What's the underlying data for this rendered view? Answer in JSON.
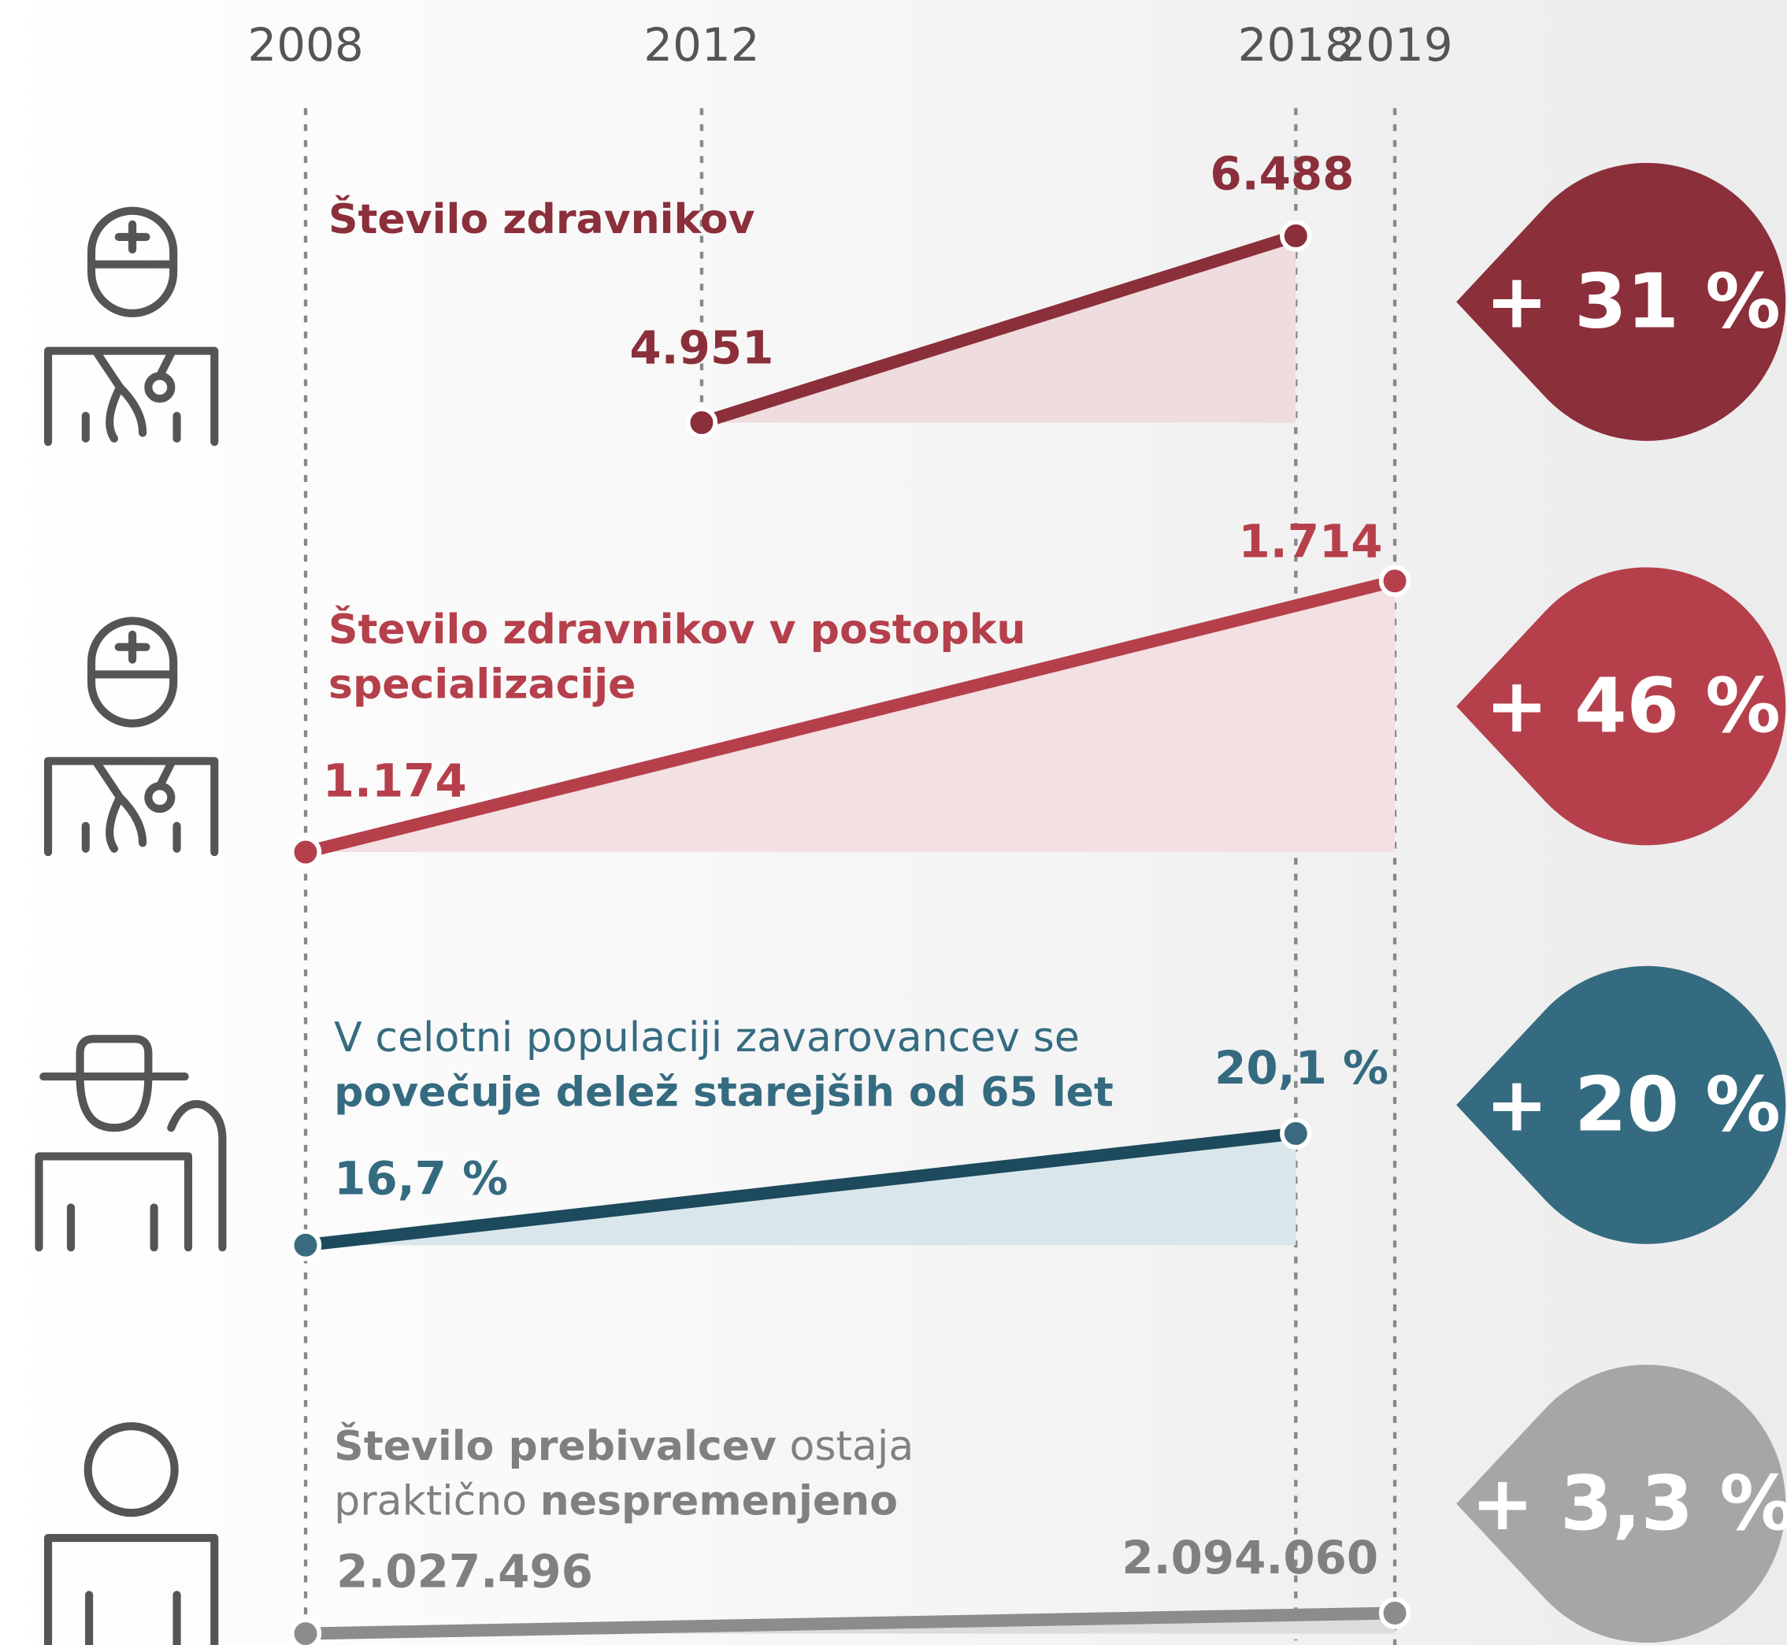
{
  "axis": {
    "xlim": [
      2008,
      2019
    ],
    "xticks": [
      2008,
      2012,
      2018,
      2019
    ]
  },
  "chart_data": [
    {
      "type": "line",
      "title_lines": [
        [
          {
            "text": "Število zdravnikov",
            "bold": true
          }
        ]
      ],
      "x": [
        2012,
        2018
      ],
      "values": [
        4951,
        6488
      ],
      "value_labels": [
        "4.951",
        "6.488"
      ],
      "ylim": [
        4951,
        6488
      ],
      "color": "#8b2f3a",
      "fill": "#efdcde",
      "label_color": "#8b2f3a",
      "change": {
        "value": 31,
        "label": "+ 31 %"
      },
      "badge_color": "#8b2f3a"
    },
    {
      "type": "line",
      "title_lines": [
        [
          {
            "text": "Število zdravnikov v postopku",
            "bold": true
          }
        ],
        [
          {
            "text": "specializacije",
            "bold": true
          }
        ]
      ],
      "x": [
        2008,
        2019
      ],
      "values": [
        1174,
        1714
      ],
      "value_labels": [
        "1.174",
        "1.714"
      ],
      "ylim": [
        1174,
        1714
      ],
      "color": "#b5404b",
      "fill": "#f3e0e2",
      "label_color": "#b5404b",
      "change": {
        "value": 46,
        "label": "+ 46 %"
      },
      "badge_color": "#b5404b"
    },
    {
      "type": "line",
      "title_lines": [
        [
          {
            "text": "V celotni populaciji zavarovancev se",
            "bold": false
          }
        ],
        [
          {
            "text": "povečuje delež starejših od 65 let",
            "bold": true
          }
        ]
      ],
      "x": [
        2008,
        2018
      ],
      "values": [
        16.7,
        20.1
      ],
      "value_labels": [
        "16,7 %",
        "20,1 %"
      ],
      "ylim": [
        16.7,
        20.1
      ],
      "color": "#1d4a5c",
      "fill": "#d9e7ed",
      "label_color": "#356b80",
      "point_color": "#3a6a80",
      "change": {
        "value": 20,
        "label": "+ 20 %"
      },
      "badge_color": "#356b80"
    },
    {
      "type": "line",
      "title_lines": [
        [
          {
            "text": "Število prebivalcev",
            "bold": true
          },
          {
            "text": " ostaja",
            "bold": false
          }
        ],
        [
          {
            "text": "praktično ",
            "bold": false
          },
          {
            "text": "nespremenjeno",
            "bold": true
          }
        ]
      ],
      "x": [
        2008,
        2019
      ],
      "values": [
        2027496,
        2094060
      ],
      "value_labels": [
        "2.027.496",
        "2.094.060"
      ],
      "ylim": [
        2027496,
        2094060
      ],
      "color": "#8c8c8c",
      "fill": "#dcdcdc",
      "label_color": "#808080",
      "change": {
        "value": 3.3,
        "label": "+ 3,3 %"
      },
      "badge_color": "#a6a6a6"
    }
  ]
}
